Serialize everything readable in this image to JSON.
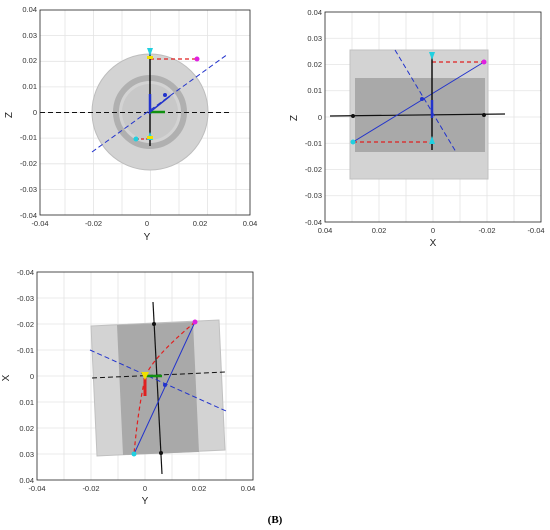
{
  "figure": {
    "caption": "(B)",
    "colors": {
      "outer_body": "#d3d3d3",
      "inner_body": "#a9a9a9",
      "ring": "#b8b8b8",
      "black_axis": "#111111",
      "blue_line": "#2233cc",
      "red_line": "#e02020",
      "magenta_point": "#e020e0",
      "cyan_point": "#20d0e0",
      "yellow_marker": "#f0e000",
      "green_marker": "#109010"
    },
    "views": [
      {
        "id": "yz",
        "xlabel": "Y",
        "ylabel": "Z",
        "xticks": [
          "-0.04",
          "-0.02",
          "0",
          "0.02",
          "0.04"
        ],
        "yticks": [
          "0.04",
          "0.03",
          "0.02",
          "0.01",
          "0",
          "-0.01",
          "-0.02",
          "-0.03",
          "-0.04"
        ],
        "xlim": [
          -0.04,
          0.04
        ],
        "ylim": [
          -0.04,
          0.04
        ],
        "x_reversed": false,
        "y_reversed": false,
        "grid": true
      },
      {
        "id": "xz",
        "xlabel": "X",
        "ylabel": "Z",
        "xticks": [
          "0.04",
          "0.02",
          "0",
          "-0.02",
          "-0.04"
        ],
        "yticks": [
          "0.04",
          "0.03",
          "0.02",
          "0.01",
          "0",
          "-0.01",
          "-0.02",
          "-0.03",
          "-0.04"
        ],
        "xlim": [
          -0.04,
          0.04
        ],
        "ylim": [
          -0.04,
          0.04
        ],
        "x_reversed": true,
        "y_reversed": false,
        "grid": true
      },
      {
        "id": "yx",
        "xlabel": "Y",
        "ylabel": "X",
        "xticks": [
          "-0.04",
          "-0.02",
          "0",
          "0.02",
          "0.04"
        ],
        "yticks": [
          "-0.04",
          "-0.03",
          "-0.02",
          "-0.01",
          "0",
          "0.01",
          "0.02",
          "0.03",
          "0.04"
        ],
        "xlim": [
          -0.04,
          0.04
        ],
        "ylim": [
          -0.04,
          0.04
        ],
        "x_reversed": false,
        "y_reversed": true,
        "grid": true
      }
    ]
  }
}
